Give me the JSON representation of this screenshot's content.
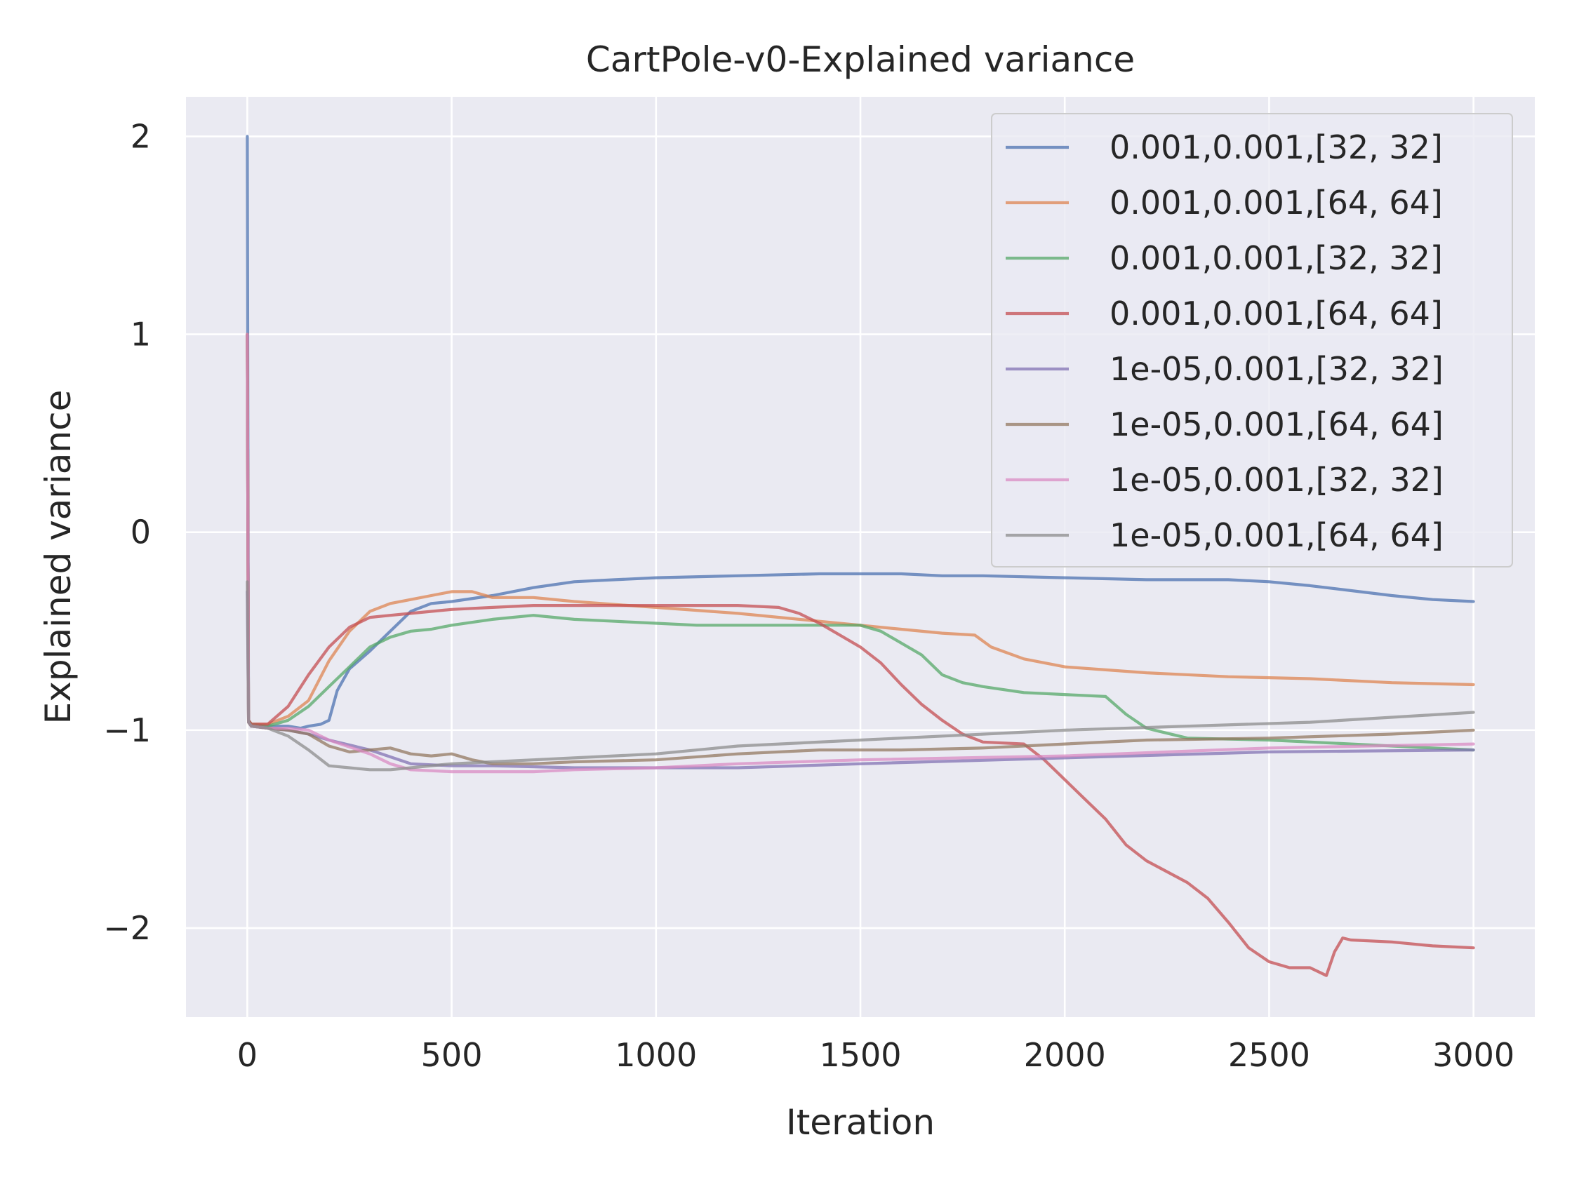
{
  "colors": {
    "background": "#eaeaf2",
    "grid": "#ffffff",
    "legend_bg": "#eaeaf2",
    "legend_border": "#cccccc"
  },
  "chart_data": {
    "type": "line",
    "title": "CartPole-v0-Explained variance",
    "xlabel": "Iteration",
    "ylabel": "Explained variance",
    "xlim": [
      -150,
      3150
    ],
    "ylim": [
      -2.45,
      2.2
    ],
    "xticks": [
      0,
      500,
      1000,
      1500,
      2000,
      2500,
      3000
    ],
    "xtick_labels": [
      "0",
      "500",
      "1000",
      "1500",
      "2000",
      "2500",
      "3000"
    ],
    "yticks": [
      2,
      1,
      0,
      -1,
      -2
    ],
    "ytick_labels": [
      "2",
      "1",
      "0",
      "−1",
      "−2"
    ],
    "grid": true,
    "legend_position": "top-right",
    "series": [
      {
        "name": "0.001,0.001,[32, 32]",
        "color": "#4c72b0",
        "points": [
          [
            0,
            2.0
          ],
          [
            3,
            -0.95
          ],
          [
            10,
            -0.98
          ],
          [
            50,
            -0.98
          ],
          [
            100,
            -0.98
          ],
          [
            130,
            -0.99
          ],
          [
            150,
            -0.98
          ],
          [
            180,
            -0.97
          ],
          [
            200,
            -0.95
          ],
          [
            220,
            -0.8
          ],
          [
            250,
            -0.69
          ],
          [
            300,
            -0.6
          ],
          [
            350,
            -0.5
          ],
          [
            400,
            -0.4
          ],
          [
            450,
            -0.36
          ],
          [
            500,
            -0.35
          ],
          [
            600,
            -0.32
          ],
          [
            700,
            -0.28
          ],
          [
            800,
            -0.25
          ],
          [
            900,
            -0.24
          ],
          [
            1000,
            -0.23
          ],
          [
            1200,
            -0.22
          ],
          [
            1400,
            -0.21
          ],
          [
            1500,
            -0.21
          ],
          [
            1600,
            -0.21
          ],
          [
            1700,
            -0.22
          ],
          [
            1800,
            -0.22
          ],
          [
            2000,
            -0.23
          ],
          [
            2200,
            -0.24
          ],
          [
            2400,
            -0.24
          ],
          [
            2500,
            -0.25
          ],
          [
            2600,
            -0.27
          ],
          [
            2800,
            -0.32
          ],
          [
            2900,
            -0.34
          ],
          [
            3000,
            -0.35
          ]
        ]
      },
      {
        "name": "0.001,0.001,[64, 64]",
        "color": "#dd8452",
        "points": [
          [
            0,
            1.0
          ],
          [
            3,
            -0.95
          ],
          [
            10,
            -0.97
          ],
          [
            50,
            -0.97
          ],
          [
            100,
            -0.93
          ],
          [
            150,
            -0.85
          ],
          [
            200,
            -0.65
          ],
          [
            250,
            -0.5
          ],
          [
            300,
            -0.4
          ],
          [
            350,
            -0.36
          ],
          [
            400,
            -0.34
          ],
          [
            450,
            -0.32
          ],
          [
            500,
            -0.3
          ],
          [
            550,
            -0.3
          ],
          [
            600,
            -0.33
          ],
          [
            700,
            -0.33
          ],
          [
            800,
            -0.35
          ],
          [
            1000,
            -0.38
          ],
          [
            1200,
            -0.41
          ],
          [
            1400,
            -0.45
          ],
          [
            1500,
            -0.47
          ],
          [
            1600,
            -0.49
          ],
          [
            1700,
            -0.51
          ],
          [
            1780,
            -0.52
          ],
          [
            1820,
            -0.58
          ],
          [
            1900,
            -0.64
          ],
          [
            2000,
            -0.68
          ],
          [
            2200,
            -0.71
          ],
          [
            2400,
            -0.73
          ],
          [
            2600,
            -0.74
          ],
          [
            2800,
            -0.76
          ],
          [
            3000,
            -0.77
          ]
        ]
      },
      {
        "name": "0.001,0.001,[32, 32]",
        "color": "#55a868",
        "points": [
          [
            0,
            1.0
          ],
          [
            3,
            -0.95
          ],
          [
            10,
            -0.97
          ],
          [
            50,
            -0.98
          ],
          [
            100,
            -0.95
          ],
          [
            150,
            -0.88
          ],
          [
            200,
            -0.78
          ],
          [
            250,
            -0.68
          ],
          [
            300,
            -0.58
          ],
          [
            350,
            -0.53
          ],
          [
            400,
            -0.5
          ],
          [
            450,
            -0.49
          ],
          [
            500,
            -0.47
          ],
          [
            600,
            -0.44
          ],
          [
            700,
            -0.42
          ],
          [
            800,
            -0.44
          ],
          [
            900,
            -0.45
          ],
          [
            1000,
            -0.46
          ],
          [
            1100,
            -0.47
          ],
          [
            1300,
            -0.47
          ],
          [
            1500,
            -0.47
          ],
          [
            1550,
            -0.5
          ],
          [
            1600,
            -0.56
          ],
          [
            1650,
            -0.62
          ],
          [
            1700,
            -0.72
          ],
          [
            1750,
            -0.76
          ],
          [
            1800,
            -0.78
          ],
          [
            1900,
            -0.81
          ],
          [
            2000,
            -0.82
          ],
          [
            2100,
            -0.83
          ],
          [
            2150,
            -0.92
          ],
          [
            2200,
            -0.99
          ],
          [
            2300,
            -1.04
          ],
          [
            2500,
            -1.05
          ],
          [
            2700,
            -1.07
          ],
          [
            2900,
            -1.09
          ],
          [
            3000,
            -1.1
          ]
        ]
      },
      {
        "name": "0.001,0.001,[64, 64]",
        "color": "#c44e52",
        "points": [
          [
            0,
            1.0
          ],
          [
            3,
            -0.95
          ],
          [
            10,
            -0.97
          ],
          [
            50,
            -0.97
          ],
          [
            100,
            -0.88
          ],
          [
            150,
            -0.72
          ],
          [
            200,
            -0.58
          ],
          [
            250,
            -0.48
          ],
          [
            300,
            -0.43
          ],
          [
            350,
            -0.42
          ],
          [
            400,
            -0.41
          ],
          [
            500,
            -0.39
          ],
          [
            600,
            -0.38
          ],
          [
            700,
            -0.37
          ],
          [
            800,
            -0.37
          ],
          [
            1000,
            -0.37
          ],
          [
            1200,
            -0.37
          ],
          [
            1300,
            -0.38
          ],
          [
            1350,
            -0.41
          ],
          [
            1400,
            -0.46
          ],
          [
            1450,
            -0.52
          ],
          [
            1500,
            -0.58
          ],
          [
            1550,
            -0.66
          ],
          [
            1600,
            -0.77
          ],
          [
            1650,
            -0.87
          ],
          [
            1700,
            -0.95
          ],
          [
            1750,
            -1.02
          ],
          [
            1800,
            -1.06
          ],
          [
            1900,
            -1.07
          ],
          [
            1950,
            -1.15
          ],
          [
            2000,
            -1.25
          ],
          [
            2050,
            -1.35
          ],
          [
            2100,
            -1.45
          ],
          [
            2150,
            -1.58
          ],
          [
            2200,
            -1.66
          ],
          [
            2300,
            -1.77
          ],
          [
            2350,
            -1.85
          ],
          [
            2400,
            -1.97
          ],
          [
            2450,
            -2.1
          ],
          [
            2500,
            -2.17
          ],
          [
            2550,
            -2.2
          ],
          [
            2600,
            -2.2
          ],
          [
            2640,
            -2.24
          ],
          [
            2660,
            -2.12
          ],
          [
            2680,
            -2.05
          ],
          [
            2700,
            -2.06
          ],
          [
            2800,
            -2.07
          ],
          [
            2900,
            -2.09
          ],
          [
            3000,
            -2.1
          ]
        ]
      },
      {
        "name": "1e-05,0.001,[32, 32]",
        "color": "#8172b3",
        "points": [
          [
            0,
            -0.3
          ],
          [
            3,
            -0.96
          ],
          [
            10,
            -0.98
          ],
          [
            50,
            -0.99
          ],
          [
            100,
            -1.0
          ],
          [
            150,
            -1.02
          ],
          [
            200,
            -1.05
          ],
          [
            300,
            -1.1
          ],
          [
            400,
            -1.17
          ],
          [
            500,
            -1.18
          ],
          [
            600,
            -1.18
          ],
          [
            800,
            -1.19
          ],
          [
            1000,
            -1.19
          ],
          [
            1200,
            -1.19
          ],
          [
            1500,
            -1.17
          ],
          [
            2000,
            -1.14
          ],
          [
            2500,
            -1.11
          ],
          [
            3000,
            -1.1
          ]
        ]
      },
      {
        "name": "1e-05,0.001,[64, 64]",
        "color": "#937860",
        "points": [
          [
            0,
            1.0
          ],
          [
            3,
            -0.96
          ],
          [
            10,
            -0.98
          ],
          [
            50,
            -0.99
          ],
          [
            100,
            -1.0
          ],
          [
            150,
            -1.02
          ],
          [
            200,
            -1.08
          ],
          [
            250,
            -1.11
          ],
          [
            300,
            -1.1
          ],
          [
            350,
            -1.09
          ],
          [
            400,
            -1.12
          ],
          [
            450,
            -1.13
          ],
          [
            500,
            -1.12
          ],
          [
            550,
            -1.15
          ],
          [
            600,
            -1.17
          ],
          [
            700,
            -1.17
          ],
          [
            800,
            -1.16
          ],
          [
            1000,
            -1.15
          ],
          [
            1200,
            -1.12
          ],
          [
            1400,
            -1.1
          ],
          [
            1600,
            -1.1
          ],
          [
            1800,
            -1.09
          ],
          [
            2000,
            -1.07
          ],
          [
            2200,
            -1.05
          ],
          [
            2500,
            -1.04
          ],
          [
            2800,
            -1.02
          ],
          [
            3000,
            -1.0
          ]
        ]
      },
      {
        "name": "1e-05,0.001,[32, 32]",
        "color": "#da8bc3",
        "points": [
          [
            0,
            1.0
          ],
          [
            3,
            -0.96
          ],
          [
            10,
            -0.98
          ],
          [
            50,
            -0.99
          ],
          [
            100,
            -0.99
          ],
          [
            150,
            -1.0
          ],
          [
            200,
            -1.05
          ],
          [
            300,
            -1.12
          ],
          [
            350,
            -1.17
          ],
          [
            400,
            -1.2
          ],
          [
            500,
            -1.21
          ],
          [
            600,
            -1.21
          ],
          [
            700,
            -1.21
          ],
          [
            800,
            -1.2
          ],
          [
            1000,
            -1.19
          ],
          [
            1200,
            -1.17
          ],
          [
            1500,
            -1.15
          ],
          [
            2000,
            -1.13
          ],
          [
            2500,
            -1.09
          ],
          [
            3000,
            -1.07
          ]
        ]
      },
      {
        "name": "1e-05,0.001,[64, 64]",
        "color": "#8c8c8c",
        "points": [
          [
            0,
            -0.25
          ],
          [
            3,
            -0.96
          ],
          [
            10,
            -0.98
          ],
          [
            50,
            -0.99
          ],
          [
            100,
            -1.03
          ],
          [
            150,
            -1.1
          ],
          [
            200,
            -1.18
          ],
          [
            250,
            -1.19
          ],
          [
            300,
            -1.2
          ],
          [
            350,
            -1.2
          ],
          [
            400,
            -1.19
          ],
          [
            500,
            -1.17
          ],
          [
            600,
            -1.16
          ],
          [
            700,
            -1.15
          ],
          [
            800,
            -1.14
          ],
          [
            1000,
            -1.12
          ],
          [
            1200,
            -1.08
          ],
          [
            1500,
            -1.05
          ],
          [
            2000,
            -1.0
          ],
          [
            2300,
            -0.98
          ],
          [
            2600,
            -0.96
          ],
          [
            3000,
            -0.91
          ]
        ]
      }
    ]
  }
}
